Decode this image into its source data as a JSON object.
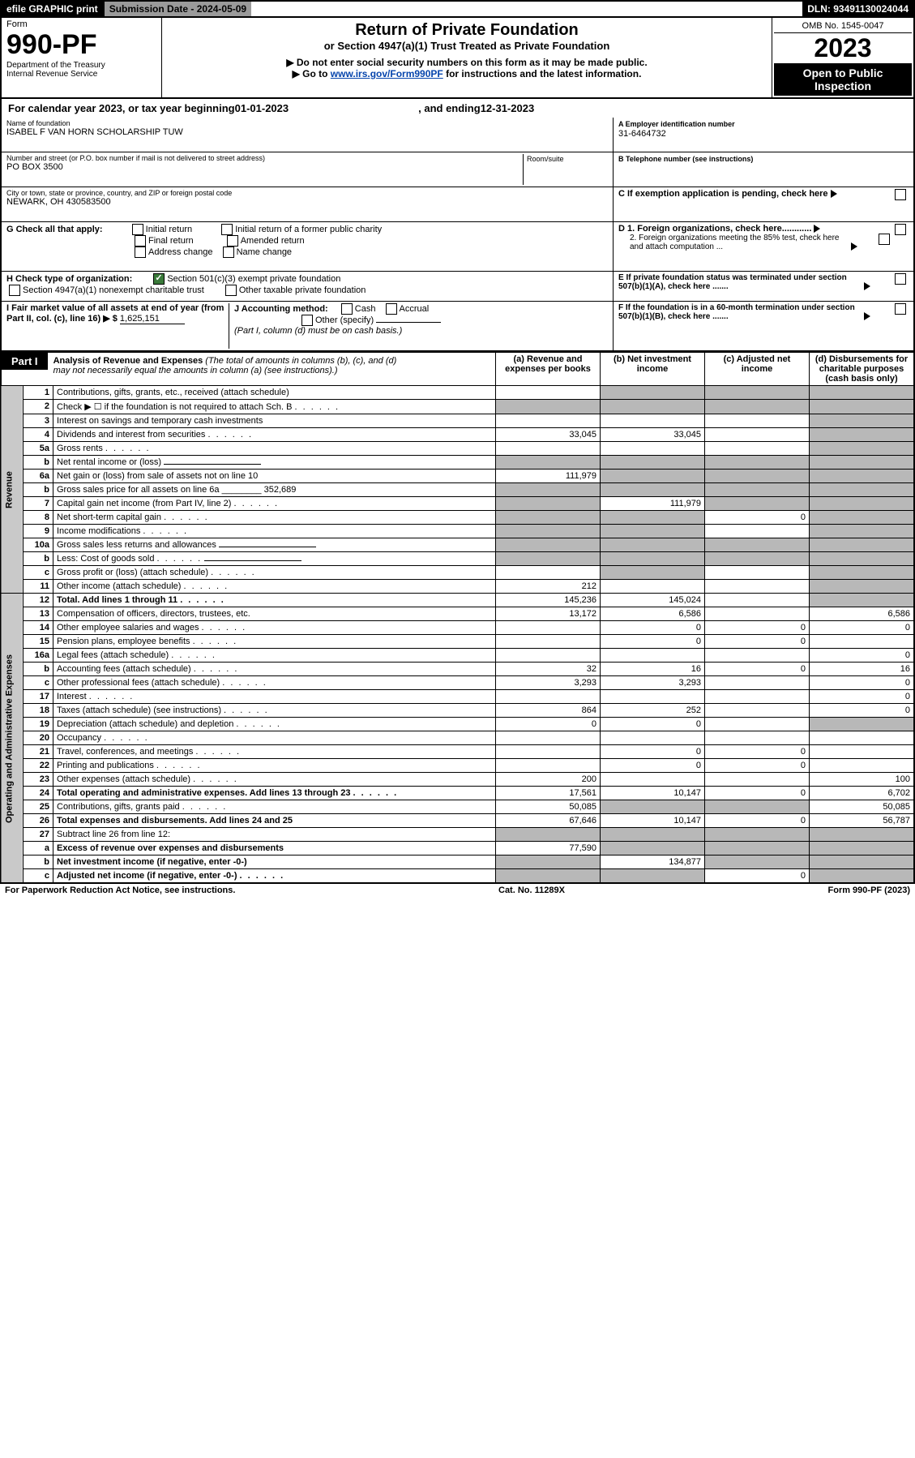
{
  "header": {
    "efile": "efile GRAPHIC print",
    "sub_date_lbl": "Submission Date - ",
    "sub_date": "2024-05-09",
    "dln_lbl": "DLN: ",
    "dln": "93491130024044"
  },
  "top": {
    "form": "Form",
    "num": "990-PF",
    "dept": "Department of the Treasury",
    "irs": "Internal Revenue Service",
    "title": "Return of Private Foundation",
    "subtitle": "or Section 4947(a)(1) Trust Treated as Private Foundation",
    "instr1": "▶ Do not enter social security numbers on this form as it may be made public.",
    "instr2": "▶ Go to ",
    "instr2_link": "www.irs.gov/Form990PF",
    "instr2b": " for instructions and the latest information.",
    "omb": "OMB No. 1545-0047",
    "year": "2023",
    "open": "Open to Public Inspection"
  },
  "cal": {
    "a": "For calendar year 2023, or tax year beginning ",
    "b": "01-01-2023",
    "c": ", and ending ",
    "d": "12-31-2023"
  },
  "left": {
    "name_lbl": "Name of foundation",
    "name": "ISABEL F VAN HORN SCHOLARSHIP TUW",
    "addr_lbl": "Number and street (or P.O. box number if mail is not delivered to street address)",
    "room_lbl": "Room/suite",
    "addr": "PO BOX 3500",
    "city_lbl": "City or town, state or province, country, and ZIP or foreign postal code",
    "city": "NEWARK, OH  430583500",
    "g": "G Check all that apply:",
    "g1": "Initial return",
    "g2": "Final return",
    "g3": "Address change",
    "g4": "Initial return of a former public charity",
    "g5": "Amended return",
    "g6": "Name change",
    "h": "H Check type of organization:",
    "h1": "Section 501(c)(3) exempt private foundation",
    "h2": "Section 4947(a)(1) nonexempt charitable trust",
    "h3": "Other taxable private foundation",
    "i": "I Fair market value of all assets at end of year (from Part II, col. (c), line 16) ▶ $",
    "i_val": "1,625,151",
    "j": "J Accounting method:",
    "j1": "Cash",
    "j2": "Accrual",
    "j3": "Other (specify)",
    "j4": "(Part I, column (d) must be on cash basis.)"
  },
  "right": {
    "a_lbl": "A Employer identification number",
    "a": "31-6464732",
    "b_lbl": "B Telephone number (see instructions)",
    "c": "C If exemption application is pending, check here",
    "d1": "D 1. Foreign organizations, check here............",
    "d2": "2. Foreign organizations meeting the 85% test, check here and attach computation ...",
    "e": "E If private foundation status was terminated under section 507(b)(1)(A), check here .......",
    "f": "F If the foundation is in a 60-month termination under section 507(b)(1)(B), check here ......."
  },
  "p1": {
    "label": "Part I",
    "title": "Analysis of Revenue and Expenses",
    "note": "(The total of amounts in columns (b), (c), and (d) may not necessarily equal the amounts in column (a) (see instructions).)",
    "ca": "(a) Revenue and expenses per books",
    "cb": "(b) Net investment income",
    "cc": "(c) Adjusted net income",
    "cd": "(d) Disbursements for charitable purposes (cash basis only)"
  },
  "rev_label": "Revenue",
  "exp_label": "Operating and Administrative Expenses",
  "rows": [
    {
      "n": "1",
      "d": "Contributions, gifts, grants, etc., received (attach schedule)",
      "a": "",
      "b": "¤",
      "c": "¤",
      "dd": "¤"
    },
    {
      "n": "2",
      "d": "Check ▶ ☐ if the foundation is not required to attach Sch. B",
      "dots": 1,
      "a": "¤",
      "b": "¤",
      "c": "¤",
      "dd": "¤"
    },
    {
      "n": "3",
      "d": "Interest on savings and temporary cash investments",
      "a": "",
      "b": "",
      "c": "",
      "dd": "¤"
    },
    {
      "n": "4",
      "d": "Dividends and interest from securities",
      "dots": 1,
      "a": "33,045",
      "b": "33,045",
      "c": "",
      "dd": "¤"
    },
    {
      "n": "5a",
      "d": "Gross rents",
      "dots": 1,
      "a": "",
      "b": "",
      "c": "",
      "dd": "¤"
    },
    {
      "n": "b",
      "d": "Net rental income or (loss)",
      "inline": 1,
      "a": "¤",
      "b": "¤",
      "c": "¤",
      "dd": "¤"
    },
    {
      "n": "6a",
      "d": "Net gain or (loss) from sale of assets not on line 10",
      "a": "111,979",
      "b": "¤",
      "c": "¤",
      "dd": "¤"
    },
    {
      "n": "b",
      "d": "Gross sales price for all assets on line 6a",
      "inline_val": "352,689",
      "a": "¤",
      "b": "¤",
      "c": "¤",
      "dd": "¤"
    },
    {
      "n": "7",
      "d": "Capital gain net income (from Part IV, line 2)",
      "dots": 1,
      "a": "¤",
      "b": "111,979",
      "c": "¤",
      "dd": "¤"
    },
    {
      "n": "8",
      "d": "Net short-term capital gain",
      "dots": 1,
      "a": "¤",
      "b": "¤",
      "c": "0",
      "dd": "¤"
    },
    {
      "n": "9",
      "d": "Income modifications",
      "dots": 1,
      "a": "¤",
      "b": "¤",
      "c": "",
      "dd": "¤"
    },
    {
      "n": "10a",
      "d": "Gross sales less returns and allowances",
      "inline": 1,
      "a": "¤",
      "b": "¤",
      "c": "¤",
      "dd": "¤"
    },
    {
      "n": "b",
      "d": "Less: Cost of goods sold",
      "dots": 1,
      "inline": 1,
      "a": "¤",
      "b": "¤",
      "c": "¤",
      "dd": "¤"
    },
    {
      "n": "c",
      "d": "Gross profit or (loss) (attach schedule)",
      "dots": 1,
      "a": "",
      "b": "¤",
      "c": "",
      "dd": "¤"
    },
    {
      "n": "11",
      "d": "Other income (attach schedule)",
      "dots": 1,
      "a": "212",
      "b": "",
      "c": "",
      "dd": "¤"
    },
    {
      "n": "12",
      "d": "Total. Add lines 1 through 11",
      "dots": 1,
      "bold": 1,
      "a": "145,236",
      "b": "145,024",
      "c": "",
      "dd": "¤"
    },
    {
      "n": "13",
      "d": "Compensation of officers, directors, trustees, etc.",
      "a": "13,172",
      "b": "6,586",
      "c": "",
      "dd": "6,586"
    },
    {
      "n": "14",
      "d": "Other employee salaries and wages",
      "dots": 1,
      "a": "",
      "b": "0",
      "c": "0",
      "dd": "0"
    },
    {
      "n": "15",
      "d": "Pension plans, employee benefits",
      "dots": 1,
      "a": "",
      "b": "0",
      "c": "0",
      "dd": ""
    },
    {
      "n": "16a",
      "d": "Legal fees (attach schedule)",
      "dots": 1,
      "a": "",
      "b": "",
      "c": "",
      "dd": "0"
    },
    {
      "n": "b",
      "d": "Accounting fees (attach schedule)",
      "dots": 1,
      "a": "32",
      "b": "16",
      "c": "0",
      "dd": "16"
    },
    {
      "n": "c",
      "d": "Other professional fees (attach schedule)",
      "dots": 1,
      "a": "3,293",
      "b": "3,293",
      "c": "",
      "dd": "0"
    },
    {
      "n": "17",
      "d": "Interest",
      "dots": 1,
      "a": "",
      "b": "",
      "c": "",
      "dd": "0"
    },
    {
      "n": "18",
      "d": "Taxes (attach schedule) (see instructions)",
      "dots": 1,
      "a": "864",
      "b": "252",
      "c": "",
      "dd": "0"
    },
    {
      "n": "19",
      "d": "Depreciation (attach schedule) and depletion",
      "dots": 1,
      "a": "0",
      "b": "0",
      "c": "",
      "dd": "¤"
    },
    {
      "n": "20",
      "d": "Occupancy",
      "dots": 1,
      "a": "",
      "b": "",
      "c": "",
      "dd": ""
    },
    {
      "n": "21",
      "d": "Travel, conferences, and meetings",
      "dots": 1,
      "a": "",
      "b": "0",
      "c": "0",
      "dd": ""
    },
    {
      "n": "22",
      "d": "Printing and publications",
      "dots": 1,
      "a": "",
      "b": "0",
      "c": "0",
      "dd": ""
    },
    {
      "n": "23",
      "d": "Other expenses (attach schedule)",
      "dots": 1,
      "a": "200",
      "b": "",
      "c": "",
      "dd": "100"
    },
    {
      "n": "24",
      "d": "Total operating and administrative expenses. Add lines 13 through 23",
      "dots": 1,
      "bold": 1,
      "a": "17,561",
      "b": "10,147",
      "c": "0",
      "dd": "6,702"
    },
    {
      "n": "25",
      "d": "Contributions, gifts, grants paid",
      "dots": 1,
      "a": "50,085",
      "b": "¤",
      "c": "¤",
      "dd": "50,085"
    },
    {
      "n": "26",
      "d": "Total expenses and disbursements. Add lines 24 and 25",
      "bold": 1,
      "a": "67,646",
      "b": "10,147",
      "c": "0",
      "dd": "56,787"
    },
    {
      "n": "27",
      "d": "Subtract line 26 from line 12:",
      "a": "¤",
      "b": "¤",
      "c": "¤",
      "dd": "¤"
    },
    {
      "n": "a",
      "d": "Excess of revenue over expenses and disbursements",
      "bold": 1,
      "a": "77,590",
      "b": "¤",
      "c": "¤",
      "dd": "¤"
    },
    {
      "n": "b",
      "d": "Net investment income (if negative, enter -0-)",
      "bold": 1,
      "a": "¤",
      "b": "134,877",
      "c": "¤",
      "dd": "¤"
    },
    {
      "n": "c",
      "d": "Adjusted net income (if negative, enter -0-)",
      "dots": 1,
      "bold": 1,
      "a": "¤",
      "b": "¤",
      "c": "0",
      "dd": "¤"
    }
  ],
  "footer": {
    "a": "For Paperwork Reduction Act Notice, see instructions.",
    "b": "Cat. No. 11289X",
    "c": "Form 990-PF (2023)"
  }
}
